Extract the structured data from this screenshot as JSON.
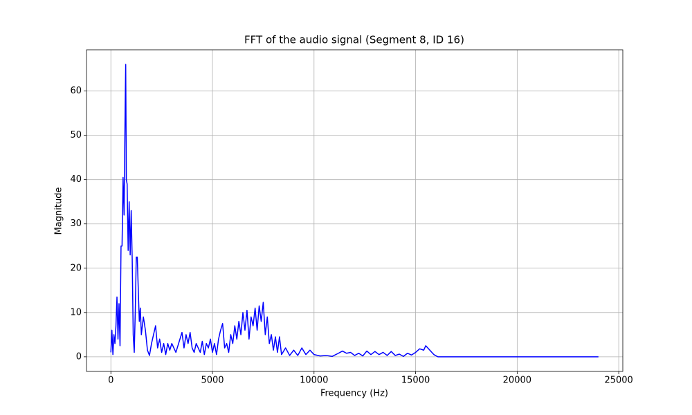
{
  "chart_data": {
    "type": "line",
    "title": "FFT of the audio signal (Segment 8, ID 16)",
    "x_label": "Frequency (Hz)",
    "y_label": "Magnitude",
    "x": [
      0,
      50,
      100,
      150,
      200,
      250,
      300,
      350,
      400,
      450,
      500,
      550,
      600,
      650,
      700,
      730,
      760,
      800,
      850,
      900,
      950,
      1000,
      1050,
      1100,
      1150,
      1200,
      1250,
      1300,
      1350,
      1400,
      1450,
      1500,
      1600,
      1700,
      1800,
      1900,
      2000,
      2100,
      2200,
      2300,
      2400,
      2500,
      2600,
      2700,
      2800,
      2900,
      3000,
      3200,
      3400,
      3500,
      3600,
      3700,
      3800,
      3900,
      4000,
      4100,
      4200,
      4400,
      4500,
      4600,
      4700,
      4800,
      4900,
      5000,
      5100,
      5200,
      5300,
      5400,
      5500,
      5600,
      5700,
      5800,
      5900,
      6000,
      6100,
      6200,
      6300,
      6400,
      6500,
      6600,
      6700,
      6800,
      6900,
      7000,
      7100,
      7200,
      7300,
      7400,
      7500,
      7600,
      7700,
      7800,
      7900,
      8000,
      8100,
      8200,
      8300,
      8400,
      8600,
      8800,
      9000,
      9200,
      9400,
      9600,
      9800,
      10000,
      10300,
      10600,
      10900,
      11200,
      11400,
      11600,
      11800,
      12000,
      12200,
      12400,
      12600,
      12800,
      13000,
      13200,
      13400,
      13600,
      13800,
      14000,
      14200,
      14400,
      14600,
      14800,
      15000,
      15200,
      15400,
      15500,
      15700,
      15900,
      16100,
      24000
    ],
    "series": [
      {
        "name": "FFT",
        "color": "#0000ff",
        "values": [
          1,
          6,
          0.5,
          5,
          3,
          7,
          13.5,
          4,
          12,
          2.5,
          25,
          25,
          40.5,
          32,
          55,
          66,
          40,
          39,
          24,
          35,
          23,
          33,
          22,
          5,
          1,
          10,
          22.5,
          22.5,
          15,
          8,
          11,
          5,
          9,
          6,
          1.5,
          0.3,
          3,
          5,
          7,
          2,
          4,
          1,
          3,
          0.5,
          3,
          1.5,
          3,
          1,
          4,
          5.5,
          2,
          5,
          3,
          5.5,
          2,
          1,
          3,
          1,
          3.5,
          0.5,
          3,
          2,
          4,
          1,
          3,
          0.5,
          4,
          6,
          7.5,
          2,
          3,
          1,
          5,
          3,
          7,
          4,
          8,
          5,
          10,
          6,
          10.5,
          4,
          9,
          7,
          11,
          6,
          11.5,
          8,
          12.3,
          5,
          9,
          3,
          5,
          1.5,
          4.5,
          1,
          4.5,
          0.5,
          2,
          0.3,
          1.5,
          0.3,
          2,
          0.5,
          1.5,
          0.5,
          0.2,
          0.3,
          0.1,
          0.8,
          1.3,
          0.8,
          1,
          0.3,
          0.8,
          0.2,
          1.3,
          0.5,
          1.2,
          0.5,
          1,
          0.3,
          1.2,
          0.3,
          0.6,
          0.1,
          0.8,
          0.4,
          1,
          1.8,
          1.5,
          2.5,
          1.5,
          0.5,
          0,
          0
        ]
      }
    ],
    "xlim": [
      -1200,
      25200
    ],
    "ylim": [
      -3.3,
      69.3
    ],
    "xticks": [
      0,
      5000,
      10000,
      15000,
      20000,
      25000
    ],
    "yticks": [
      0,
      10,
      20,
      30,
      40,
      50,
      60
    ],
    "grid": true
  }
}
